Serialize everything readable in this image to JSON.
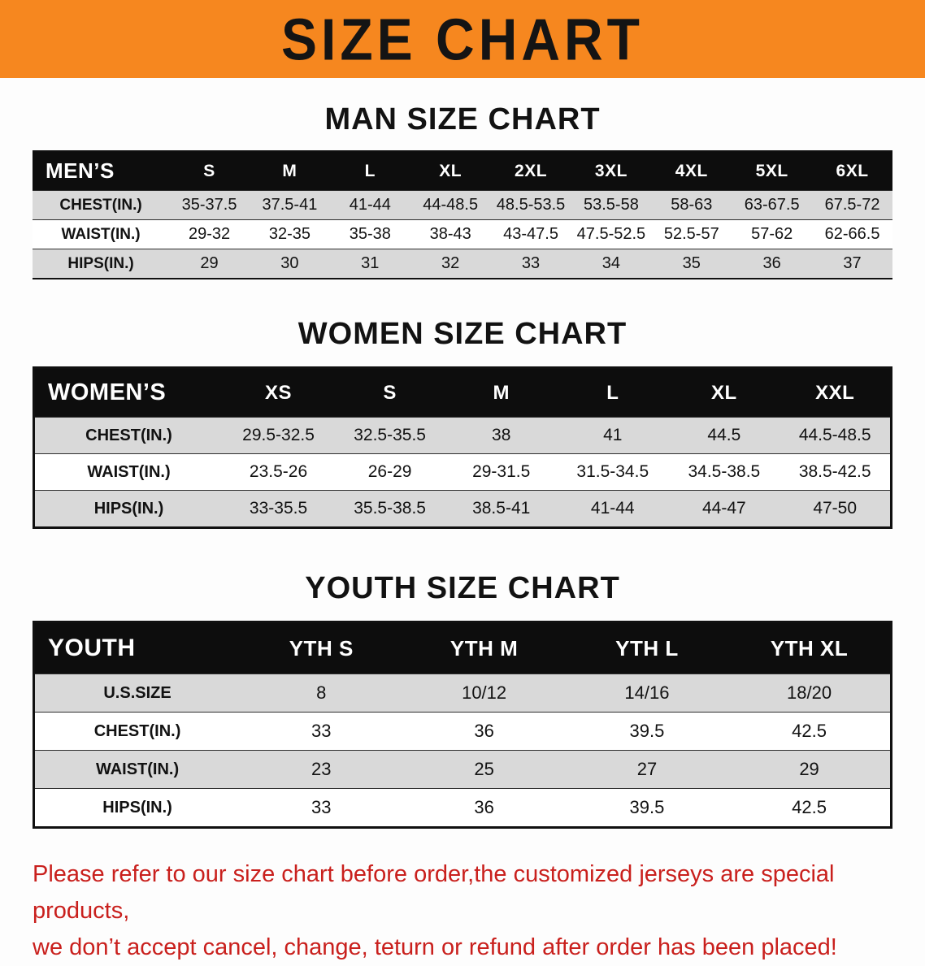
{
  "banner": {
    "title": "SIZE CHART"
  },
  "sections": [
    {
      "id": "men",
      "heading": "MAN SIZE CHART",
      "table": {
        "header": [
          "MEN’S",
          "S",
          "M",
          "L",
          "XL",
          "2XL",
          "3XL",
          "4XL",
          "5XL",
          "6XL"
        ],
        "rows": [
          [
            "CHEST(IN.)",
            "35-37.5",
            "37.5-41",
            "41-44",
            "44-48.5",
            "48.5-53.5",
            "53.5-58",
            "58-63",
            "63-67.5",
            "67.5-72"
          ],
          [
            "WAIST(IN.)",
            "29-32",
            "32-35",
            "35-38",
            "38-43",
            "43-47.5",
            "47.5-52.5",
            "52.5-57",
            "57-62",
            "62-66.5"
          ],
          [
            "HIPS(IN.)",
            "29",
            "30",
            "31",
            "32",
            "33",
            "34",
            "35",
            "36",
            "37"
          ]
        ]
      }
    },
    {
      "id": "women",
      "heading": "WOMEN SIZE CHART",
      "table": {
        "header": [
          "WOMEN’S",
          "XS",
          "S",
          "M",
          "L",
          "XL",
          "XXL"
        ],
        "rows": [
          [
            "CHEST(IN.)",
            "29.5-32.5",
            "32.5-35.5",
            "38",
            "41",
            "44.5",
            "44.5-48.5"
          ],
          [
            "WAIST(IN.)",
            "23.5-26",
            "26-29",
            "29-31.5",
            "31.5-34.5",
            "34.5-38.5",
            "38.5-42.5"
          ],
          [
            "HIPS(IN.)",
            "33-35.5",
            "35.5-38.5",
            "38.5-41",
            "41-44",
            "44-47",
            "47-50"
          ]
        ]
      }
    },
    {
      "id": "youth",
      "heading": "YOUTH SIZE CHART",
      "table": {
        "header": [
          "YOUTH",
          "YTH S",
          "YTH M",
          "YTH L",
          "YTH XL"
        ],
        "rows": [
          [
            "U.S.SIZE",
            "8",
            "10/12",
            "14/16",
            "18/20"
          ],
          [
            "CHEST(IN.)",
            "33",
            "36",
            "39.5",
            "42.5"
          ],
          [
            "WAIST(IN.)",
            "23",
            "25",
            "27",
            "29"
          ],
          [
            "HIPS(IN.)",
            "33",
            "36",
            "39.5",
            "42.5"
          ]
        ]
      }
    }
  ],
  "footer_note": {
    "line1": "Please refer to our size chart before order,the customized jerseys are special products,",
    "line2": "we don’t accept cancel, change, teturn or refund after order has been placed!"
  },
  "colors": {
    "banner_bg": "#f6871f",
    "header_bg": "#0d0d0d",
    "shaded_row": "#d9d9d9",
    "note_red": "#c9201d"
  }
}
